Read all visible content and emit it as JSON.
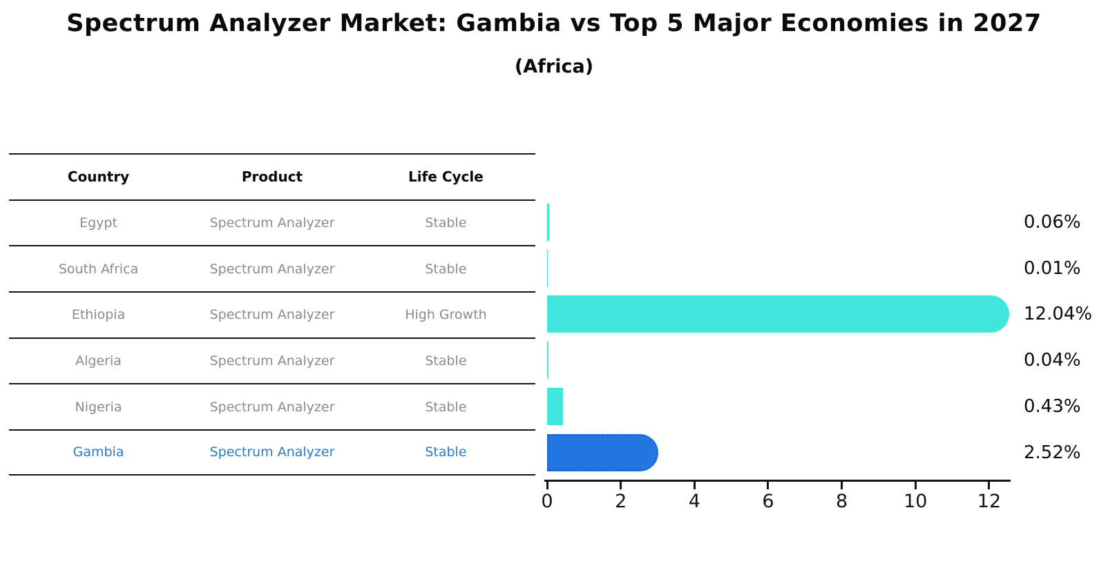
{
  "title": "Spectrum Analyzer Market: Gambia vs Top 5 Major Economies in 2027",
  "subtitle": "(Africa)",
  "table": {
    "headers": [
      "Country",
      "Product",
      "Life Cycle"
    ],
    "rows": [
      {
        "country": "Egypt",
        "product": "Spectrum Analyzer",
        "life_cycle": "Stable",
        "highlight": false
      },
      {
        "country": "South Africa",
        "product": "Spectrum Analyzer",
        "life_cycle": "Stable",
        "highlight": false
      },
      {
        "country": "Ethiopia",
        "product": "Spectrum Analyzer",
        "life_cycle": "High Growth",
        "highlight": false
      },
      {
        "country": "Algeria",
        "product": "Spectrum Analyzer",
        "life_cycle": "Stable",
        "highlight": false
      },
      {
        "country": "Nigeria",
        "product": "Spectrum Analyzer",
        "life_cycle": "Stable",
        "highlight": false
      },
      {
        "country": "Gambia",
        "product": "Spectrum Analyzer",
        "life_cycle": "Stable",
        "highlight": true
      }
    ]
  },
  "chart_data": {
    "type": "bar",
    "orientation": "horizontal",
    "title": "Spectrum Analyzer Market: Gambia vs Top 5 Major Economies in 2027",
    "subtitle": "(Africa)",
    "categories": [
      "Egypt",
      "South Africa",
      "Ethiopia",
      "Algeria",
      "Nigeria",
      "Gambia"
    ],
    "values": [
      0.06,
      0.01,
      12.04,
      0.04,
      0.43,
      2.52
    ],
    "value_labels": [
      "0.06%",
      "0.01%",
      "12.04%",
      "0.04%",
      "0.43%",
      "2.52%"
    ],
    "highlight_index": 5,
    "x_ticks": [
      0,
      2,
      4,
      6,
      8,
      10,
      12
    ],
    "xlim": [
      0,
      12.7
    ],
    "xlabel": "",
    "ylabel": "",
    "grid": false,
    "legend": false,
    "bar_color": "#42e5dc",
    "highlight_bar_color": "#2277e0",
    "highlight_bar_border_color": "#1e64cf"
  },
  "colors": {
    "text_default": "#0a0a0a",
    "text_muted": "#8a8a8a",
    "highlight_text": "#2b7bc2",
    "axis": "#141414"
  }
}
